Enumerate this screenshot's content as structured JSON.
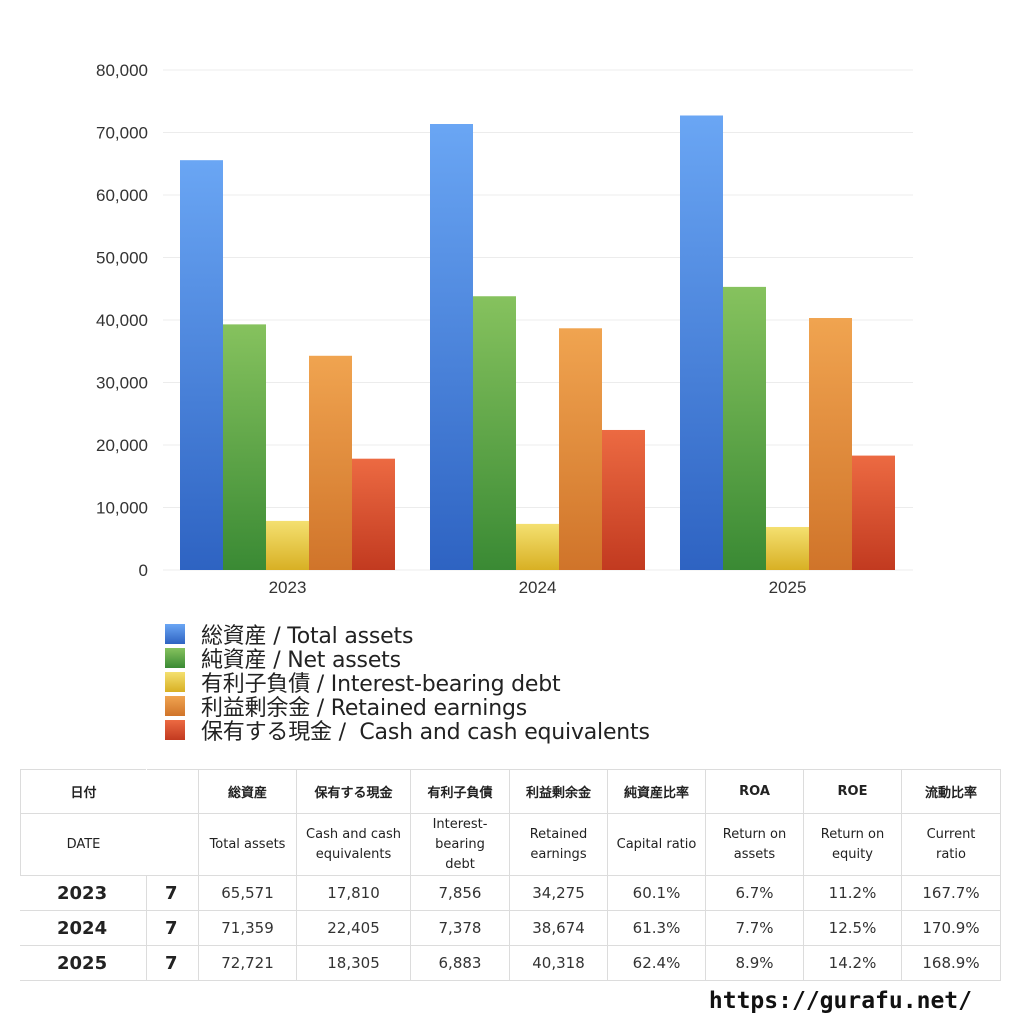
{
  "chart_data": {
    "type": "bar",
    "categories": [
      "2023",
      "2024",
      "2025"
    ],
    "ylim": [
      0,
      80000
    ],
    "yticks": [
      "0",
      "10,000",
      "20,000",
      "30,000",
      "40,000",
      "50,000",
      "60,000",
      "70,000",
      "80,000"
    ],
    "grid": true,
    "legend_placement": "bottom",
    "series": [
      {
        "name": "総資産 / Total assets",
        "values": [
          65571,
          71359,
          72721
        ],
        "color_top": "#6aa6f4",
        "color_bottom": "#2e63c2"
      },
      {
        "name": "純資産 / Net assets",
        "values": [
          39300,
          43800,
          45300
        ],
        "color_top": "#86c25e",
        "color_bottom": "#3a8a34"
      },
      {
        "name": "有利子負債 / Interest-bearing debt",
        "values": [
          7856,
          7378,
          6883
        ],
        "color_top": "#f4e070",
        "color_bottom": "#d8b024"
      },
      {
        "name": "利益剰余金 / Retained earnings",
        "values": [
          34275,
          38674,
          40318
        ],
        "color_top": "#f0a450",
        "color_bottom": "#d0742a"
      },
      {
        "name": "保有する現金 /  Cash and cash equivalents",
        "values": [
          17810,
          22405,
          18305
        ],
        "color_top": "#ec6a42",
        "color_bottom": "#c23a20"
      }
    ]
  },
  "table": {
    "headers_ja": [
      "日付",
      "",
      "総資産",
      "保有する現金",
      "有利子負債",
      "利益剰余金",
      "純資産比率",
      "ROA",
      "ROE",
      "流動比率"
    ],
    "headers_en": [
      "DATE",
      "",
      "Total assets",
      "Cash and cash\nequivalents",
      "Interest-\nbearing\ndebt",
      "Retained\nearnings",
      "Capital ratio",
      "Return on\nassets",
      "Return on\nequity",
      "Current\nratio"
    ],
    "rows": [
      [
        "2023",
        "7",
        "65,571",
        "17,810",
        "7,856",
        "34,275",
        "60.1%",
        "6.7%",
        "11.2%",
        "167.7%"
      ],
      [
        "2024",
        "7",
        "71,359",
        "22,405",
        "7,378",
        "38,674",
        "61.3%",
        "7.7%",
        "12.5%",
        "170.9%"
      ],
      [
        "2025",
        "7",
        "72,721",
        "18,305",
        "6,883",
        "40,318",
        "62.4%",
        "8.9%",
        "14.2%",
        "168.9%"
      ]
    ]
  },
  "footer": {
    "url": "https://gurafu.net/"
  }
}
